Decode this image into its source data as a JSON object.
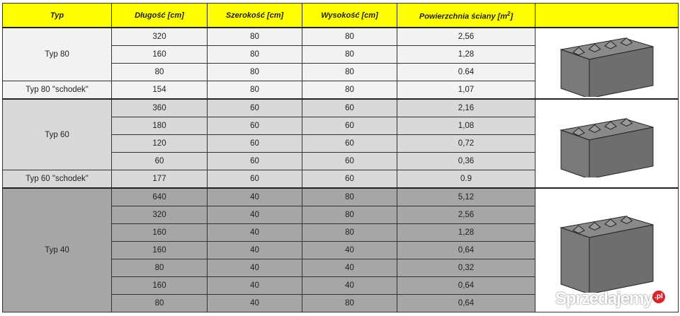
{
  "headers": {
    "typ": "Typ",
    "dlugosc": "Długość [cm]",
    "szerokosc": "Szerokość [cm]",
    "wysokosc": "Wysokość [cm]",
    "powierzchnia": "Powierzchnia ściany [m",
    "powierzchnia_sup": "2",
    "powierzchnia_end": "]"
  },
  "groups": [
    {
      "label": "Typ 80",
      "rows": [
        [
          "320",
          "80",
          "80",
          "2,56"
        ],
        [
          "160",
          "80",
          "80",
          "1,28"
        ],
        [
          "80",
          "80",
          "80",
          "0.64"
        ]
      ],
      "schodek": {
        "label": "Typ 80 \"schodek\"",
        "row": [
          "154",
          "80",
          "80",
          "1,07"
        ]
      },
      "color": "#f2f2f2"
    },
    {
      "label": "Typ 60",
      "rows": [
        [
          "360",
          "60",
          "60",
          "2,16"
        ],
        [
          "180",
          "60",
          "60",
          "1,08"
        ],
        [
          "120",
          "60",
          "60",
          "0,72"
        ],
        [
          "60",
          "60",
          "60",
          "0,36"
        ]
      ],
      "schodek": {
        "label": "Typ 60 \"schodek\"",
        "row": [
          "177",
          "60",
          "60",
          "0.9"
        ]
      },
      "color": "#d9d9d9"
    },
    {
      "label": "Typ 40",
      "rows": [
        [
          "640",
          "40",
          "80",
          "5,12"
        ],
        [
          "320",
          "40",
          "80",
          "2,56"
        ],
        [
          "160",
          "40",
          "80",
          "1,28"
        ],
        [
          "160",
          "40",
          "40",
          "0,64"
        ],
        [
          "80",
          "40",
          "40",
          "0,32"
        ],
        [
          "160",
          "40",
          "40",
          "0,64"
        ],
        [
          "80",
          "40",
          "80",
          "0,64"
        ]
      ],
      "color": "#a6a6a6"
    }
  ],
  "header_color": "#ffff00",
  "watermark": {
    "text": "Sprzedajemy",
    "badge": ".pl"
  }
}
